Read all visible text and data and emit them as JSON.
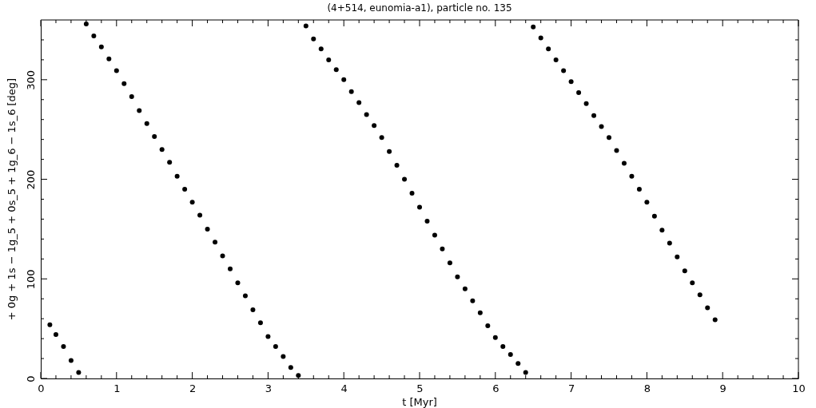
{
  "chart_data": {
    "type": "scatter",
    "title": "(4+514, eunomia-a1), particle no. 135",
    "xlabel": "t [Myr]",
    "ylabel": "+ 0g + 1s − 1g_5 + 0s_5 + 1g_6 − 1s_6 [deg]",
    "xlim": [
      0,
      10
    ],
    "ylim": [
      0,
      360
    ],
    "xticks": [
      0,
      {
        "value": 0.2,
        "label": null
      },
      {
        "value": 0.4,
        "label": null
      },
      {
        "value": 0.6,
        "label": null
      },
      {
        "value": 0.8,
        "label": null
      },
      1,
      {
        "value": 1.2,
        "label": null
      },
      {
        "value": 1.4,
        "label": null
      },
      {
        "value": 1.6,
        "label": null
      },
      {
        "value": 1.8,
        "label": null
      },
      2,
      {
        "value": 2.2,
        "label": null
      },
      {
        "value": 2.4,
        "label": null
      },
      {
        "value": 2.6,
        "label": null
      },
      {
        "value": 2.8,
        "label": null
      },
      3,
      {
        "value": 3.2,
        "label": null
      },
      {
        "value": 3.4,
        "label": null
      },
      {
        "value": 3.6,
        "label": null
      },
      {
        "value": 3.8,
        "label": null
      },
      4,
      {
        "value": 4.2,
        "label": null
      },
      {
        "value": 4.4,
        "label": null
      },
      {
        "value": 4.6,
        "label": null
      },
      {
        "value": 4.8,
        "label": null
      },
      5,
      {
        "value": 5.2,
        "label": null
      },
      {
        "value": 5.4,
        "label": null
      },
      {
        "value": 5.6,
        "label": null
      },
      {
        "value": 5.8,
        "label": null
      },
      6,
      {
        "value": 6.2,
        "label": null
      },
      {
        "value": 6.4,
        "label": null
      },
      {
        "value": 6.6,
        "label": null
      },
      {
        "value": 6.8,
        "label": null
      },
      7,
      {
        "value": 7.2,
        "label": null
      },
      {
        "value": 7.4,
        "label": null
      },
      {
        "value": 7.6,
        "label": null
      },
      {
        "value": 7.8,
        "label": null
      },
      8,
      {
        "value": 8.2,
        "label": null
      },
      {
        "value": 8.4,
        "label": null
      },
      {
        "value": 8.6,
        "label": null
      },
      {
        "value": 8.8,
        "label": null
      },
      9,
      {
        "value": 9.2,
        "label": null
      },
      {
        "value": 9.4,
        "label": null
      },
      {
        "value": 9.6,
        "label": null
      },
      {
        "value": 9.8,
        "label": null
      },
      10
    ],
    "yticks": [
      0,
      {
        "value": 20,
        "label": null
      },
      {
        "value": 40,
        "label": null
      },
      {
        "value": 60,
        "label": null
      },
      {
        "value": 80,
        "label": null
      },
      100,
      {
        "value": 120,
        "label": null
      },
      {
        "value": 140,
        "label": null
      },
      {
        "value": 160,
        "label": null
      },
      {
        "value": 180,
        "label": null
      },
      200,
      {
        "value": 220,
        "label": null
      },
      {
        "value": 240,
        "label": null
      },
      {
        "value": 260,
        "label": null
      },
      {
        "value": 280,
        "label": null
      },
      300,
      {
        "value": 320,
        "label": null
      },
      {
        "value": 340,
        "label": null
      }
    ],
    "grid": false,
    "marker": "circle",
    "series": [
      {
        "color": "#000000",
        "x": [
          0.12,
          0.2,
          0.3,
          0.4,
          0.5,
          0.6,
          0.7,
          0.8,
          0.9,
          1.0,
          1.1,
          1.2,
          1.3,
          1.4,
          1.5,
          1.6,
          1.7,
          1.8,
          1.9,
          2.0,
          2.1,
          2.2,
          2.3,
          2.4,
          2.5,
          2.6,
          2.7,
          2.8,
          2.9,
          3.0,
          3.1,
          3.2,
          3.3,
          3.4,
          3.5,
          3.6,
          3.7,
          3.8,
          3.9,
          4.0,
          4.1,
          4.2,
          4.3,
          4.4,
          4.5,
          4.6,
          4.7,
          4.8,
          4.9,
          5.0,
          5.1,
          5.2,
          5.3,
          5.4,
          5.5,
          5.6,
          5.7,
          5.8,
          5.9,
          6.0,
          6.1,
          6.2,
          6.3,
          6.4,
          6.5,
          6.6,
          6.7,
          6.8,
          6.9,
          7.0,
          7.1,
          7.2,
          7.3,
          7.4,
          7.5,
          7.6,
          7.7,
          7.8,
          7.9,
          8.0,
          8.1,
          8.2,
          8.3,
          8.4,
          8.5,
          8.6,
          8.7,
          8.8,
          8.9
        ],
        "values": [
          54,
          44,
          32,
          18,
          6,
          356,
          344,
          333,
          321,
          309,
          296,
          283,
          269,
          256,
          243,
          230,
          217,
          203,
          190,
          177,
          164,
          150,
          137,
          123,
          110,
          96,
          83,
          69,
          56,
          42,
          32,
          22,
          11,
          3,
          354,
          341,
          331,
          320,
          310,
          300,
          288,
          277,
          265,
          254,
          242,
          228,
          214,
          200,
          186,
          172,
          158,
          144,
          130,
          116,
          102,
          90,
          78,
          66,
          53,
          41,
          32,
          24,
          15,
          6,
          353,
          342,
          331,
          320,
          309,
          298,
          287,
          276,
          264,
          253,
          242,
          229,
          216,
          203,
          190,
          177,
          163,
          149,
          136,
          122,
          108,
          96,
          84,
          71,
          59
        ]
      }
    ]
  }
}
